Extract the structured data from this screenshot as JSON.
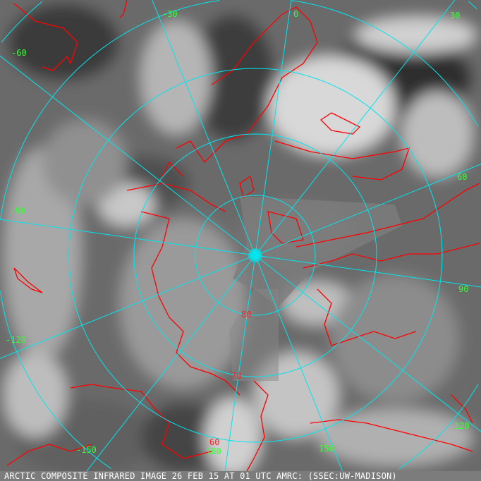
{
  "caption": "ARCTIC COMPOSITE INFRARED IMAGE 26 FEB 15 AT 01 UTC AMRC: (SSEC:UW-MADISON)",
  "longitude_labels": [
    "-60",
    "-30",
    "0",
    "30",
    "60",
    "90",
    "120",
    "150",
    "180",
    "-150",
    "-120",
    "-90"
  ],
  "latitude_labels": [
    "80",
    "70",
    "60"
  ],
  "colors": {
    "graticule": "#00e5ee",
    "coastline": "#ff0000",
    "longitude_label": "#33ff33",
    "latitude_label": "#ff2020"
  }
}
